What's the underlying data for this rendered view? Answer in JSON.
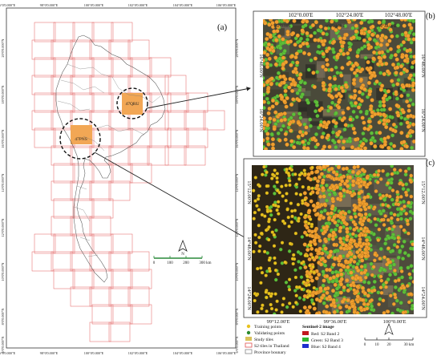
{
  "panel_labels": {
    "a": "(a)",
    "b": "(b)",
    "c": "(c)"
  },
  "map_a": {
    "lon_labels": [
      "96°0'0.000\"E",
      "98°0'0.000\"E",
      "100°0'0.000\"E",
      "102°0'0.000\"E",
      "104°0'0.000\"E",
      "106°0'0.000\"E"
    ],
    "lat_labels": [
      "20°0'0.000\"N",
      "18°0'0.000\"N",
      "16°0'0.000\"N",
      "14°0'0.000\"N",
      "12°0'0.000\"N",
      "10°0'0.000\"N",
      "8°0'0.000\"N",
      "6°0'0.000\"N"
    ],
    "tile_labels": [
      "47PNS",
      "47QRU"
    ],
    "scale_labels": [
      "0",
      "100",
      "200",
      "300 km"
    ]
  },
  "map_b": {
    "lon_labels": [
      "102°0.00'E",
      "102°24.00'E",
      "102°48.00'E"
    ],
    "lat_labels": [
      "16°48.00'N",
      "16°24.00'N"
    ]
  },
  "map_c": {
    "lon_labels": [
      "99°12.00'E",
      "99°36.00'E",
      "100°0.00'E"
    ],
    "lat_labels": [
      "15°12.00'N",
      "14°48.00'N",
      "14°24.00'N"
    ]
  },
  "legend": {
    "items": [
      "Training points",
      "Validating points",
      "Study tiles",
      "S2 tiles in Thailand",
      "Province bounary"
    ],
    "sentinel_title": "Sentinel-2 image",
    "bands": [
      "Red:   S2 Band 2",
      "Green: S2 Band 3",
      "Blue:  S2 Band 4"
    ],
    "scale_labels": [
      "0",
      "10",
      "20",
      "30 km"
    ],
    "colors": {
      "training": "#e8c21e",
      "validating": "#2d8a2d",
      "study_tile": "#d9c25a",
      "s2_tile": "#e05050",
      "red": "#c0181f",
      "green": "#2fb52f",
      "blue": "#1f2fcf"
    }
  },
  "colors": {
    "tile_fill": "#f2a755",
    "tile_grid": "#e46a6a",
    "orange": "#f0a030",
    "green": "#5fbf3a",
    "dark": "#3a2a16"
  }
}
